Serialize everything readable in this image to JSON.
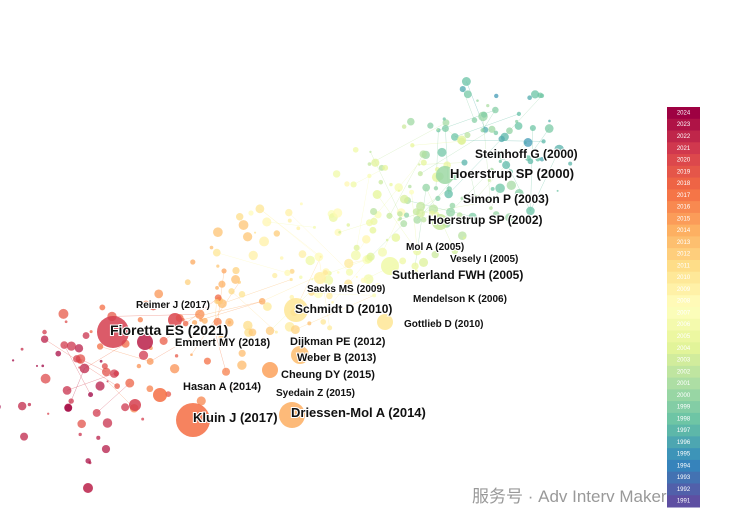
{
  "nodes": [
    {
      "label": "Steinhoff G (2000)"
    },
    {
      "label": "Hoerstrup SP (2000)"
    },
    {
      "label": "Simon P (2003)"
    },
    {
      "label": "Hoerstrup SP (2002)"
    },
    {
      "label": "Mol A (2005)"
    },
    {
      "label": "Vesely I (2005)"
    },
    {
      "label": "Sutherland FWH (2005)"
    },
    {
      "label": "Mendelson K (2006)"
    },
    {
      "label": "Sacks MS (2009)"
    },
    {
      "label": "Schmidt D (2010)"
    },
    {
      "label": "Gottlieb D (2010)"
    },
    {
      "label": "Reimer J (2017)"
    },
    {
      "label": "Fioretta ES (2021)"
    },
    {
      "label": "Emmert MY (2018)"
    },
    {
      "label": "Dijkman PE (2012)"
    },
    {
      "label": "Weber B (2013)"
    },
    {
      "label": "Cheung DY (2015)"
    },
    {
      "label": "Hasan A (2014)"
    },
    {
      "label": "Syedain Z (2015)"
    },
    {
      "label": "Kluin J (2017)"
    },
    {
      "label": "Driessen-Mol A (2014)"
    }
  ],
  "legend": {
    "years": [
      2024,
      2023,
      2022,
      2021,
      2020,
      2019,
      2018,
      2017,
      2016,
      2015,
      2014,
      2013,
      2012,
      2011,
      2010,
      2009,
      2008,
      2007,
      2006,
      2005,
      2004,
      2003,
      2002,
      2001,
      2000,
      1999,
      1998,
      1997,
      1996,
      1995,
      1994,
      1993,
      1992,
      1991
    ]
  },
  "watermark": "服务号 · Adv Interv Maker"
}
